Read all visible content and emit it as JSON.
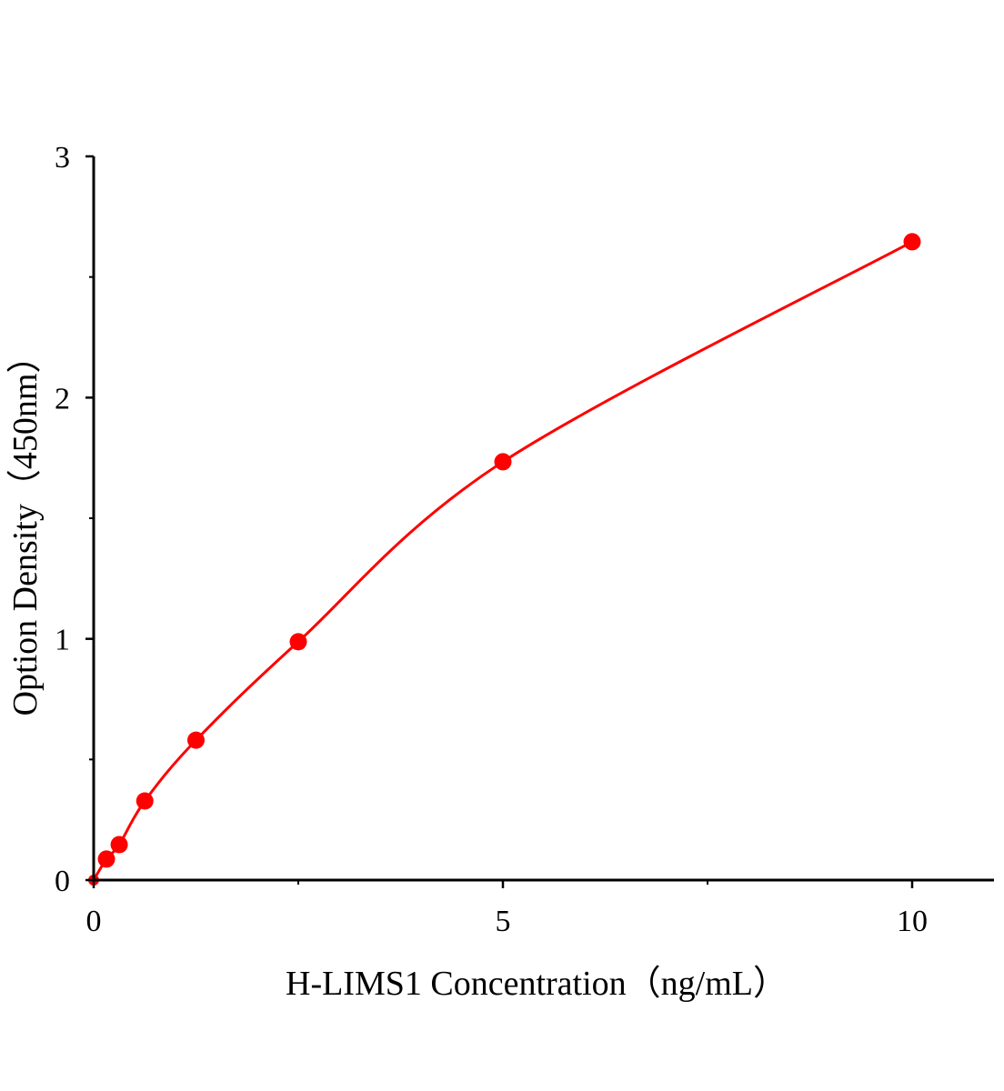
{
  "chart_data": {
    "type": "scatter",
    "title": "",
    "xlabel": "H-LIMS1 Concentration（ng/mL）",
    "ylabel": "Option Density（450nm）",
    "xlim": [
      0,
      11
    ],
    "ylim": [
      0,
      3
    ],
    "xticks": [
      0,
      5,
      10
    ],
    "yticks": [
      0,
      1,
      2,
      3
    ],
    "xticks_minor": [
      2.5,
      7.5
    ],
    "yticks_minor": [
      0.5,
      1.5,
      2.5
    ],
    "grid": false,
    "color": "#ff0000",
    "fit_curve": true,
    "series": [
      {
        "x": [
          0,
          0.156,
          0.312,
          0.625,
          1.25,
          2.5,
          5,
          10
        ],
        "y": [
          0,
          0.087,
          0.147,
          0.328,
          0.58,
          0.988,
          1.734,
          2.646
        ]
      }
    ]
  }
}
